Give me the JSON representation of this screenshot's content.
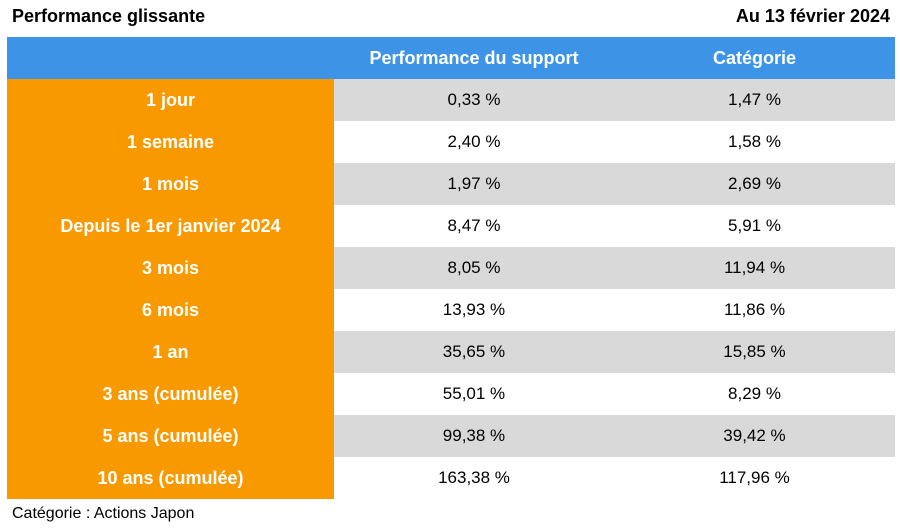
{
  "header": {
    "title": "Performance glissante",
    "date": "Au 13 février 2024"
  },
  "table": {
    "columns": [
      "",
      "Performance du support",
      "Catégorie"
    ],
    "rows": [
      {
        "period": "1 jour",
        "support": "0,33 %",
        "category": "1,47 %"
      },
      {
        "period": "1 semaine",
        "support": "2,40 %",
        "category": "1,58 %"
      },
      {
        "period": "1 mois",
        "support": "1,97 %",
        "category": "2,69 %"
      },
      {
        "period": "Depuis le 1er janvier 2024",
        "support": "8,47 %",
        "category": "5,91 %"
      },
      {
        "period": "3 mois",
        "support": "8,05 %",
        "category": "11,94 %"
      },
      {
        "period": "6 mois",
        "support": "13,93 %",
        "category": "11,86 %"
      },
      {
        "period": "1 an",
        "support": "35,65 %",
        "category": "15,85 %"
      },
      {
        "period": "3 ans (cumulée)",
        "support": "55,01 %",
        "category": "8,29 %"
      },
      {
        "period": "5 ans (cumulée)",
        "support": "99,38 %",
        "category": "39,42 %"
      },
      {
        "period": "10 ans (cumulée)",
        "support": "163,38 %",
        "category": "117,96 %"
      }
    ]
  },
  "footnote": "Catégorie : Actions Japon",
  "colors": {
    "header_blue": "#3d93e6",
    "period_orange": "#f99900",
    "stripe_grey": "#d9d9d9"
  }
}
